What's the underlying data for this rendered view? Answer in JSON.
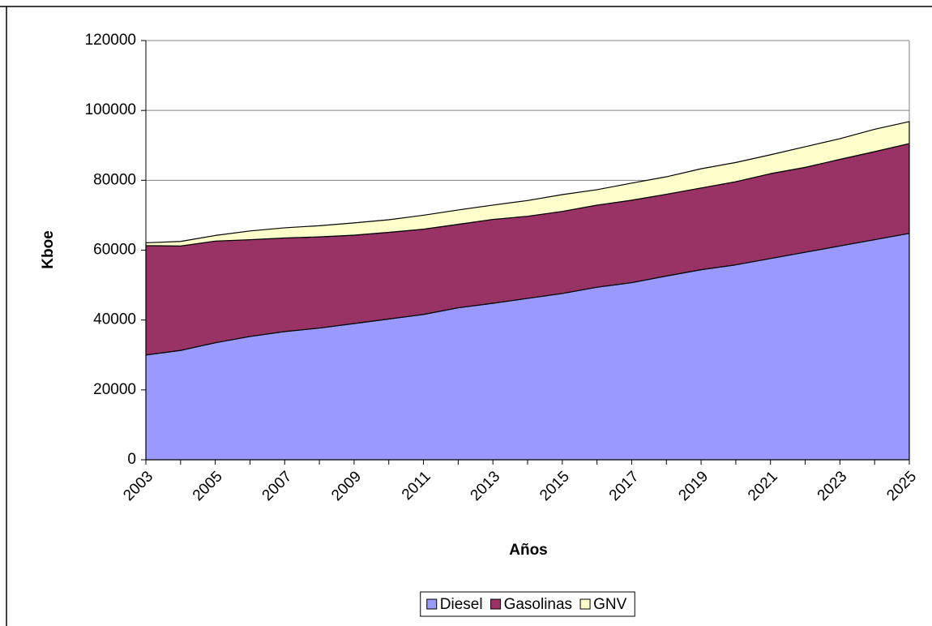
{
  "chart_data": {
    "type": "area",
    "stacked": true,
    "x_label": "Años",
    "y_label": "Kboe",
    "categories": [
      "2003",
      null,
      "2005",
      null,
      "2007",
      null,
      "2009",
      null,
      "2011",
      null,
      "2013",
      null,
      "2015",
      null,
      "2017",
      null,
      "2019",
      null,
      "2021",
      null,
      "2023",
      null,
      "2025"
    ],
    "series": [
      {
        "name": "Diesel",
        "color": "#9999ff",
        "values": [
          30000,
          31300,
          33500,
          35300,
          36700,
          37700,
          39000,
          40300,
          41600,
          43500,
          44800,
          46200,
          47600,
          49400,
          50700,
          52600,
          54400,
          55800,
          57600,
          59400,
          61200,
          63000,
          64800
        ]
      },
      {
        "name": "Gasolinas",
        "color": "#993366",
        "values": [
          31300,
          29900,
          29100,
          27700,
          26800,
          26100,
          25300,
          24800,
          24400,
          23900,
          24000,
          23500,
          23500,
          23500,
          23600,
          23400,
          23400,
          23800,
          24300,
          24300,
          24800,
          25200,
          25700
        ]
      },
      {
        "name": "GNV",
        "color": "#ffffcc",
        "values": [
          800,
          1300,
          1600,
          2500,
          2900,
          3200,
          3500,
          3600,
          4000,
          4100,
          4100,
          4500,
          4800,
          4400,
          4900,
          5000,
          5500,
          5500,
          5400,
          5900,
          5900,
          6400,
          6300
        ]
      }
    ],
    "ylim": [
      0,
      120000
    ],
    "yticks": [
      0,
      20000,
      40000,
      60000,
      80000,
      100000,
      120000
    ],
    "grid": true,
    "legend": "bottom"
  }
}
